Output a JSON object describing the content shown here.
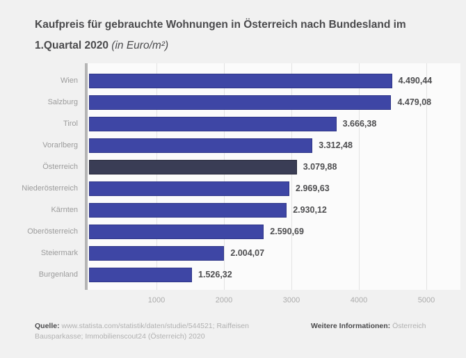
{
  "header": {
    "title_line1": "Kaufpreis für gebrauchte Wohnungen in Österreich nach Bundesland im",
    "title_line2_bold": "1.Quartal 2020",
    "title_line2_unit": " (in Euro/m²)"
  },
  "chart_data": {
    "type": "bar",
    "orientation": "horizontal",
    "title": "Kaufpreis für gebrauchte Wohnungen in Österreich nach Bundesland im 1.Quartal 2020 (in Euro/m²)",
    "categories": [
      "Wien",
      "Salzburg",
      "Tirol",
      "Vorarlberg",
      "Österreich",
      "Niederösterreich",
      "Kärnten",
      "Oberösterreich",
      "Steiermark",
      "Burgenland"
    ],
    "values": [
      4490.44,
      4479.08,
      3666.38,
      3312.48,
      3079.88,
      2969.63,
      2930.12,
      2590.69,
      2004.07,
      1526.32
    ],
    "value_labels": [
      "4.490,44",
      "4.479,08",
      "3.666,38",
      "3.312,48",
      "3.079,88",
      "2.969,63",
      "2.930,12",
      "2.590,69",
      "2.004,07",
      "1.526,32"
    ],
    "highlighted_category": "Österreich",
    "x_ticks": [
      1000,
      2000,
      3000,
      4000,
      5000
    ],
    "x_tick_labels": [
      "1000",
      "2000",
      "3000",
      "4000",
      "5000"
    ],
    "xlim": [
      0,
      5000
    ],
    "xlabel": "",
    "ylabel": "",
    "grid": true,
    "legend": false,
    "bar_color": "#3e46a5",
    "bar_border_color": "#2f3688",
    "highlight_color": "#3a3d55",
    "highlight_border_color": "#26283a"
  },
  "footer": {
    "source_label": "Quelle:",
    "source_text": " www.statista.com/statistik/daten/studie/544521; Raiffeisen Bausparkasse; Immobilienscout24 (Österreich) 2020",
    "info_label": "Weitere Informationen:",
    "info_text": " Österreich"
  },
  "colors": {
    "page_bg": "#f1f1f1",
    "plot_bg": "#fbfbfb",
    "axis": "#b5b5b5",
    "gridline": "#e3e3e3",
    "title_text": "#4a4a4c",
    "category_text": "#9b9b9b",
    "value_text": "#4d4d4f",
    "tick_text": "#ababab",
    "footer_label_text": "#4a4a4c",
    "footer_text": "#b0b0b0"
  }
}
